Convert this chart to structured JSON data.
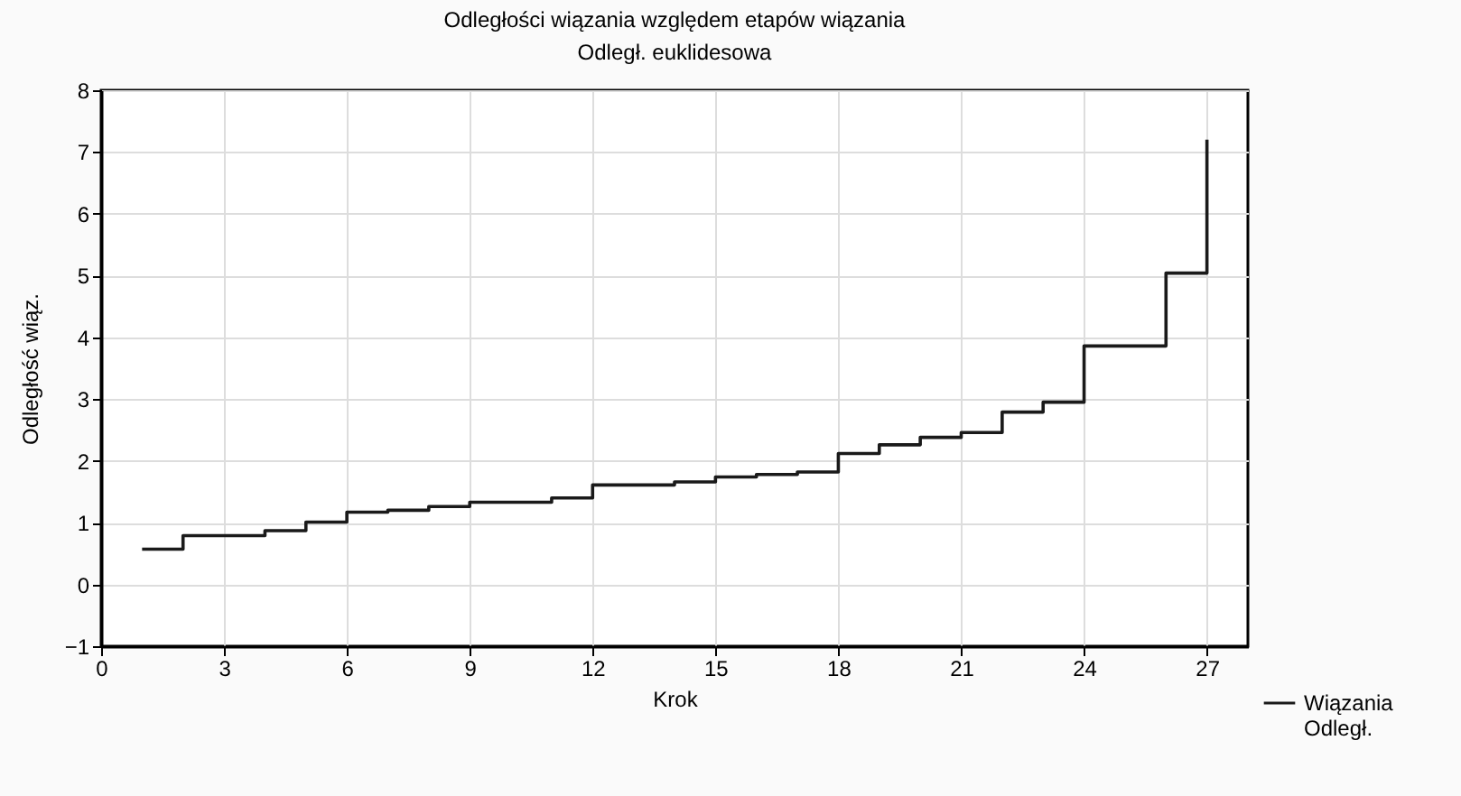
{
  "chart_data": {
    "type": "step",
    "title": "Odległości wiązania względem etapów wiązania",
    "subtitle": "Odległ. euklidesowa",
    "xlabel": "Krok",
    "ylabel": "Odległość wiąz.",
    "x": [
      1,
      2,
      3,
      4,
      5,
      6,
      7,
      8,
      9,
      10,
      11,
      12,
      13,
      14,
      15,
      16,
      17,
      18,
      19,
      20,
      21,
      22,
      23,
      24,
      25,
      26,
      27
    ],
    "series": [
      {
        "name": "Wiązania Odległ.",
        "color": "#1a1a1a",
        "values": [
          0.57,
          0.79,
          0.79,
          0.87,
          1.01,
          1.17,
          1.2,
          1.26,
          1.33,
          1.33,
          1.4,
          1.61,
          1.61,
          1.66,
          1.74,
          1.78,
          1.82,
          2.12,
          2.26,
          2.38,
          2.46,
          2.79,
          2.95,
          3.86,
          3.86,
          5.04,
          7.2
        ]
      }
    ],
    "xlim": [
      0,
      28
    ],
    "xticks": [
      0,
      3,
      6,
      9,
      12,
      15,
      18,
      21,
      24,
      27
    ],
    "ylim": [
      -1,
      8
    ],
    "yticks": [
      -1,
      0,
      1,
      2,
      3,
      4,
      5,
      6,
      7,
      8
    ],
    "grid": true,
    "legend": "bottom right",
    "line_style": "solid",
    "marker": "none"
  }
}
